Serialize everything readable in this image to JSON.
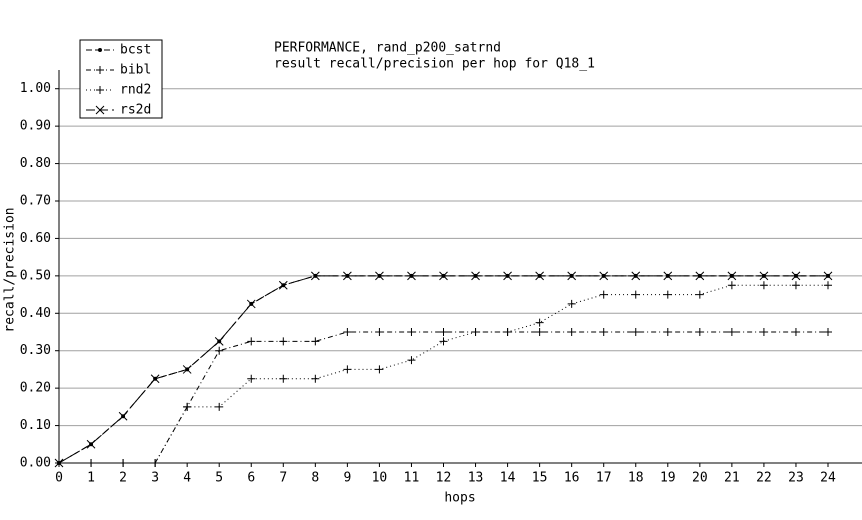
{
  "chart_data": {
    "type": "line",
    "title": "PERFORMANCE, rand_p200_satrnd",
    "subtitle": "result recall/precision per hop for Q18_1",
    "x_label": "hops",
    "y_label": "recall/precision",
    "x": [
      0,
      1,
      2,
      3,
      4,
      5,
      6,
      7,
      8,
      9,
      10,
      11,
      12,
      13,
      14,
      15,
      16,
      17,
      18,
      19,
      20,
      21,
      22,
      23,
      24
    ],
    "series": [
      {
        "name": "bcst",
        "color": "#000000",
        "marker": "dot",
        "style": "dashed",
        "values": [
          0,
          0.05,
          0.125,
          0.225,
          0.25,
          0.325,
          0.425,
          0.475,
          0.5,
          0.5,
          0.5,
          0.5,
          0.5,
          0.5,
          0.5,
          0.5,
          0.5,
          0.5,
          0.5,
          0.5,
          0.5,
          0.5,
          0.5,
          0.5,
          0.5
        ]
      },
      {
        "name": "bibl",
        "color": "#000000",
        "marker": "plus",
        "style": "dashdot",
        "values": [
          0,
          0,
          0,
          0,
          0.15,
          0.3,
          0.325,
          0.325,
          0.325,
          0.35,
          0.35,
          0.35,
          0.35,
          0.35,
          0.35,
          0.35,
          0.35,
          0.35,
          0.35,
          0.35,
          0.35,
          0.35,
          0.35,
          0.35,
          0.35
        ]
      },
      {
        "name": "rnd2",
        "color": "#000000",
        "marker": "plus",
        "style": "dotted",
        "values": [
          0,
          0,
          0,
          0,
          0.15,
          0.15,
          0.225,
          0.225,
          0.225,
          0.25,
          0.25,
          0.275,
          0.325,
          0.35,
          0.35,
          0.375,
          0.425,
          0.45,
          0.45,
          0.45,
          0.45,
          0.475,
          0.475,
          0.475,
          0.475
        ]
      },
      {
        "name": "rs2d",
        "color": "#000000",
        "marker": "cross",
        "style": "longdash",
        "values": [
          0,
          0.05,
          0.125,
          0.225,
          0.25,
          0.325,
          0.425,
          0.475,
          0.5,
          0.5,
          0.5,
          0.5,
          0.5,
          0.5,
          0.5,
          0.5,
          0.5,
          0.5,
          0.5,
          0.5,
          0.5,
          0.5,
          0.5,
          0.5,
          0.5
        ]
      }
    ],
    "xlim": [
      0,
      24
    ],
    "xticks": [
      0,
      1,
      2,
      3,
      4,
      5,
      6,
      7,
      8,
      9,
      10,
      11,
      12,
      13,
      14,
      15,
      16,
      17,
      18,
      19,
      20,
      21,
      22,
      23,
      24
    ],
    "ylim": [
      0,
      1.05
    ],
    "yticks": [
      {
        "value": 0,
        "label": "0.00"
      },
      {
        "value": 0.1,
        "label": "0.10"
      },
      {
        "value": 0.2,
        "label": "0.20"
      },
      {
        "value": 0.3,
        "label": "0.30"
      },
      {
        "value": 0.4,
        "label": "0.40"
      },
      {
        "value": 0.5,
        "label": "0.50"
      },
      {
        "value": 0.6,
        "label": "0.60"
      },
      {
        "value": 0.7,
        "label": "0.70"
      },
      {
        "value": 0.8,
        "label": "0.80"
      },
      {
        "value": 0.9,
        "label": "0.90"
      },
      {
        "value": 1,
        "label": "1.00"
      }
    ],
    "grid": true,
    "legend": "top-left"
  }
}
